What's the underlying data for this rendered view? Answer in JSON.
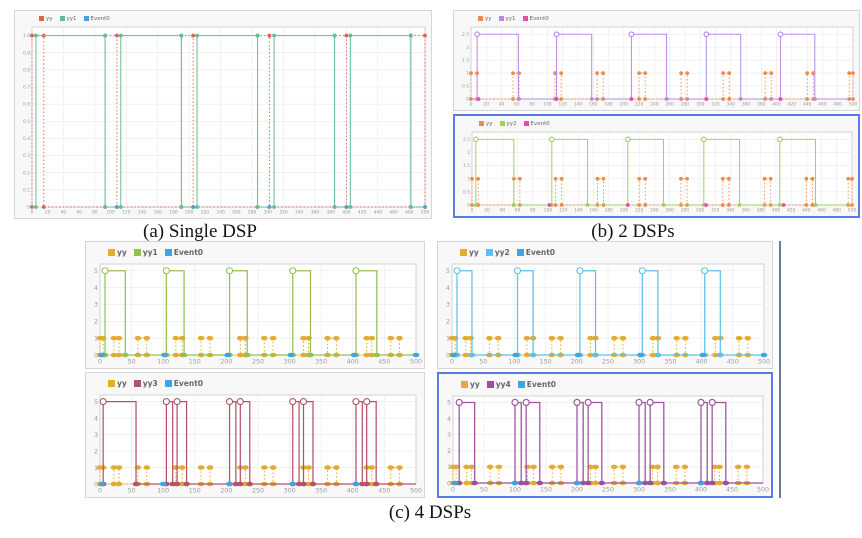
{
  "figure": {
    "captions": {
      "a": "(a) Single DSP",
      "b": "(b) 2 DSPs",
      "c": "(c) 4 DSPs"
    }
  },
  "colors": {
    "selection_border": "#5b79e8",
    "grid": "#e9e9e9",
    "tick_text": "#999999"
  },
  "chart_data": [
    {
      "id": "a",
      "type": "line",
      "title": "(a) Single DSP",
      "legend": [
        {
          "label": "yy",
          "color": "#e4604d"
        },
        {
          "label": "yy1",
          "color": "#62bd92"
        },
        {
          "label": "Event0",
          "color": "#4d9fdb"
        }
      ],
      "xlim": [
        0,
        500
      ],
      "xticks": [
        0,
        20,
        40,
        60,
        80,
        100,
        120,
        140,
        160,
        180,
        200,
        220,
        240,
        260,
        280,
        300,
        320,
        340,
        360,
        380,
        400,
        420,
        440,
        460,
        480,
        500
      ],
      "ylim": [
        0,
        1.05
      ],
      "ytick_vals": [
        0,
        0.1,
        0.2,
        0.3,
        0.4,
        0.5,
        0.6,
        0.7,
        0.8,
        0.9,
        1.0
      ],
      "ytick_labels": [
        "0",
        "0.1",
        "0.2",
        "0.3",
        "0.4",
        "0.5",
        "0.6",
        "0.7",
        "0.8",
        "0.9",
        "1.0"
      ],
      "series": [
        {
          "name": "yy",
          "color": "#e4604d",
          "style": "dashed",
          "low": 0,
          "high": 1,
          "pulses": [
            [
              0,
              15
            ],
            [
              93,
              108
            ],
            [
              190,
              205
            ],
            [
              287,
              302
            ],
            [
              385,
              400
            ],
            [
              482,
              500
            ]
          ]
        },
        {
          "name": "yy1",
          "color": "#62bd92",
          "style": "solid",
          "low": 0,
          "high": 1,
          "open_start": false,
          "pulses": [
            [
              5,
              93
            ],
            [
              113,
              190
            ],
            [
              210,
              287
            ],
            [
              308,
              385
            ],
            [
              405,
              482
            ]
          ]
        }
      ],
      "events": [
        {
          "name": "Event0",
          "color": "#4d9fdb",
          "level": 0,
          "x": [
            108,
            205,
            302,
            400,
            500
          ]
        }
      ]
    },
    {
      "id": "b1",
      "type": "line",
      "title": "(b) 2 DSPs - top",
      "legend": [
        {
          "label": "yy",
          "color": "#ee8b49"
        },
        {
          "label": "yy1",
          "color": "#bd87e0"
        },
        {
          "label": "Event0",
          "color": "#ea4da5"
        }
      ],
      "xlim": [
        0,
        500
      ],
      "xticks": [
        0,
        20,
        40,
        60,
        80,
        100,
        120,
        140,
        160,
        180,
        200,
        220,
        240,
        260,
        280,
        300,
        320,
        340,
        360,
        380,
        400,
        420,
        440,
        460,
        480,
        500
      ],
      "ylim": [
        0,
        2.78
      ],
      "ytick_vals": [
        0,
        0.5,
        1,
        1.5,
        2,
        2.5
      ],
      "ytick_labels": [
        "0",
        "0.5",
        "1",
        "1.5",
        "2",
        "2.5"
      ],
      "series": [
        {
          "name": "yy",
          "color": "#ee8b49",
          "style": "dashed",
          "low": 0,
          "high": 1,
          "pulses": [
            [
              0,
              8
            ],
            [
              55,
              63
            ],
            [
              110,
              118
            ],
            [
              165,
              173
            ],
            [
              220,
              228
            ],
            [
              275,
              283
            ],
            [
              330,
              338
            ],
            [
              385,
              393
            ],
            [
              440,
              448
            ],
            [
              495,
              500
            ]
          ]
        },
        {
          "name": "yy1",
          "color": "#bd87e0",
          "style": "solid",
          "low": 0,
          "high": 2.5,
          "open_start": true,
          "pulses": [
            [
              8,
              62
            ],
            [
              112,
              158
            ],
            [
              210,
              256
            ],
            [
              308,
              353
            ],
            [
              405,
              450
            ]
          ]
        }
      ],
      "events": [
        {
          "name": "Event0",
          "color": "#ea4da5",
          "level": 0,
          "x": [
            10,
            112,
            210,
            308,
            405
          ]
        }
      ]
    },
    {
      "id": "b2",
      "type": "line",
      "title": "(b) 2 DSPs - bottom",
      "selected": true,
      "legend": [
        {
          "label": "yy",
          "color": "#ee8b49"
        },
        {
          "label": "yy2",
          "color": "#a2cf63"
        },
        {
          "label": "Event0",
          "color": "#ea4da5"
        }
      ],
      "xlim": [
        0,
        500
      ],
      "xticks": [
        0,
        20,
        40,
        60,
        80,
        100,
        120,
        140,
        160,
        180,
        200,
        220,
        240,
        260,
        280,
        300,
        320,
        340,
        360,
        380,
        400,
        420,
        440,
        460,
        480,
        500
      ],
      "ylim": [
        0,
        2.78
      ],
      "ytick_vals": [
        0,
        0.5,
        1,
        1.5,
        2,
        2.5
      ],
      "ytick_labels": [
        "0",
        "0.5",
        "1",
        "1.5",
        "2",
        "2.5"
      ],
      "series": [
        {
          "name": "yy",
          "color": "#ee8b49",
          "style": "dashed",
          "low": 0,
          "high": 1,
          "pulses": [
            [
              0,
              8
            ],
            [
              55,
              63
            ],
            [
              110,
              118
            ],
            [
              165,
              173
            ],
            [
              220,
              228
            ],
            [
              275,
              283
            ],
            [
              330,
              338
            ],
            [
              385,
              393
            ],
            [
              440,
              448
            ],
            [
              495,
              500
            ]
          ]
        },
        {
          "name": "yy2",
          "color": "#a2cf63",
          "style": "solid",
          "low": 0,
          "high": 2.5,
          "open_start": true,
          "pulses": [
            [
              5,
              55
            ],
            [
              105,
              152
            ],
            [
              205,
              252
            ],
            [
              305,
              352
            ],
            [
              405,
              452
            ]
          ]
        }
      ],
      "events": [
        {
          "name": "Event0",
          "color": "#ea4da5",
          "level": 0,
          "x": [
            102,
            205,
            308,
            410
          ]
        }
      ]
    },
    {
      "id": "c1",
      "type": "line",
      "title": "(c) 4 DSPs - top left",
      "legend": [
        {
          "label": "yy",
          "color": "#e5ab2e"
        },
        {
          "label": "yy1",
          "color": "#93c153"
        },
        {
          "label": "Event0",
          "color": "#3da4e8"
        }
      ],
      "xlim": [
        0,
        500
      ],
      "xticks": [
        0,
        50,
        100,
        150,
        200,
        250,
        300,
        350,
        400,
        450,
        500
      ],
      "ylim": [
        0,
        5.4
      ],
      "ytick_vals": [
        0,
        1,
        2,
        3,
        4,
        5
      ],
      "ytick_labels": [
        "0",
        "1",
        "2",
        "3",
        "4",
        "5"
      ],
      "series": [
        {
          "name": "yy",
          "color": "#e5ab2e",
          "style": "dashed",
          "low": 0,
          "high": 1,
          "pulses": [
            [
              0,
              5
            ],
            [
              22,
              30
            ],
            [
              60,
              74
            ],
            [
              120,
              130
            ],
            [
              160,
              174
            ],
            [
              222,
              230
            ],
            [
              260,
              274
            ],
            [
              322,
              330
            ],
            [
              360,
              374
            ],
            [
              422,
              430
            ],
            [
              460,
              474
            ]
          ]
        },
        {
          "name": "yy1",
          "color": "#93c153",
          "style": "solid",
          "low": 0,
          "high": 5,
          "open_start": true,
          "pulses": [
            [
              8,
              40
            ],
            [
              105,
              133
            ],
            [
              205,
              233
            ],
            [
              305,
              333
            ],
            [
              405,
              438
            ]
          ]
        }
      ],
      "events": [
        {
          "name": "Event0",
          "color": "#3da4e8",
          "level": 0,
          "x": [
            3,
            102,
            202,
            302,
            402,
            500
          ]
        }
      ]
    },
    {
      "id": "c2",
      "type": "line",
      "title": "(c) 4 DSPs - top right",
      "legend": [
        {
          "label": "yy",
          "color": "#e5ab2e"
        },
        {
          "label": "yy2",
          "color": "#5ec1e8"
        },
        {
          "label": "Event0",
          "color": "#3da4e8"
        }
      ],
      "xlim": [
        0,
        500
      ],
      "xticks": [
        0,
        50,
        100,
        150,
        200,
        250,
        300,
        350,
        400,
        450,
        500
      ],
      "ylim": [
        0,
        5.4
      ],
      "ytick_vals": [
        0,
        1,
        2,
        3,
        4,
        5
      ],
      "ytick_labels": [
        "0",
        "1",
        "2",
        "3",
        "4",
        "5"
      ],
      "series": [
        {
          "name": "yy",
          "color": "#e5ab2e",
          "style": "dashed",
          "low": 0,
          "high": 1,
          "pulses": [
            [
              0,
              5
            ],
            [
              22,
              30
            ],
            [
              60,
              74
            ],
            [
              120,
              130
            ],
            [
              160,
              174
            ],
            [
              222,
              230
            ],
            [
              260,
              274
            ],
            [
              322,
              330
            ],
            [
              360,
              374
            ],
            [
              422,
              430
            ],
            [
              460,
              474
            ]
          ]
        },
        {
          "name": "yy2",
          "color": "#5ec1e8",
          "style": "solid",
          "low": 0,
          "high": 5,
          "open_start": true,
          "pulses": [
            [
              8,
              32
            ],
            [
              105,
              130
            ],
            [
              205,
              230
            ],
            [
              305,
              330
            ],
            [
              405,
              430
            ]
          ]
        }
      ],
      "events": [
        {
          "name": "Event0",
          "color": "#3da4e8",
          "level": 0,
          "x": [
            3,
            102,
            202,
            302,
            402,
            500
          ]
        }
      ]
    },
    {
      "id": "c3",
      "type": "line",
      "title": "(c) 4 DSPs - bottom left",
      "legend": [
        {
          "label": "yy",
          "color": "#e5ab2e"
        },
        {
          "label": "yy3",
          "color": "#b45367"
        },
        {
          "label": "Event0",
          "color": "#3da4e8"
        }
      ],
      "xlim": [
        0,
        500
      ],
      "xticks": [
        0,
        50,
        100,
        150,
        200,
        250,
        300,
        350,
        400,
        450,
        500
      ],
      "ylim": [
        0,
        5.4
      ],
      "ytick_vals": [
        0,
        1,
        2,
        3,
        4,
        5
      ],
      "ytick_labels": [
        "0",
        "1",
        "2",
        "3",
        "4",
        "5"
      ],
      "series": [
        {
          "name": "yy",
          "color": "#e5ab2e",
          "style": "dashed",
          "low": 0,
          "high": 1,
          "pulses": [
            [
              0,
              5
            ],
            [
              22,
              30
            ],
            [
              60,
              74
            ],
            [
              120,
              130
            ],
            [
              160,
              174
            ],
            [
              222,
              230
            ],
            [
              260,
              274
            ],
            [
              322,
              330
            ],
            [
              360,
              374
            ],
            [
              422,
              430
            ],
            [
              460,
              474
            ]
          ]
        },
        {
          "name": "yy3",
          "color": "#b45367",
          "style": "solid",
          "low": 0,
          "high": 5,
          "open_start": true,
          "pulses": [
            [
              5,
              57
            ],
            [
              105,
              115
            ],
            [
              122,
              137
            ],
            [
              205,
              215
            ],
            [
              222,
              237
            ],
            [
              305,
              315
            ],
            [
              322,
              337
            ],
            [
              405,
              415
            ],
            [
              422,
              437
            ]
          ]
        }
      ],
      "events": [
        {
          "name": "Event0",
          "color": "#3da4e8",
          "level": 0,
          "x": [
            3,
            100,
            205,
            305,
            405
          ]
        }
      ]
    },
    {
      "id": "c4",
      "type": "line",
      "title": "(c) 4 DSPs - bottom right",
      "selected": true,
      "legend": [
        {
          "label": "yy",
          "color": "#e5ab2e"
        },
        {
          "label": "yy4",
          "color": "#9b4f9e"
        },
        {
          "label": "Event0",
          "color": "#3da4e8"
        }
      ],
      "xlim": [
        0,
        500
      ],
      "xticks": [
        0,
        50,
        100,
        150,
        200,
        250,
        300,
        350,
        400,
        450,
        500
      ],
      "ylim": [
        0,
        5.4
      ],
      "ytick_vals": [
        0,
        1,
        2,
        3,
        4,
        5
      ],
      "ytick_labels": [
        "0",
        "1",
        "2",
        "3",
        "4",
        "5"
      ],
      "series": [
        {
          "name": "yy",
          "color": "#e5ab2e",
          "style": "dashed",
          "low": 0,
          "high": 1,
          "pulses": [
            [
              0,
              5
            ],
            [
              22,
              30
            ],
            [
              60,
              74
            ],
            [
              120,
              130
            ],
            [
              160,
              174
            ],
            [
              222,
              230
            ],
            [
              260,
              274
            ],
            [
              322,
              330
            ],
            [
              360,
              374
            ],
            [
              422,
              430
            ],
            [
              460,
              474
            ]
          ]
        },
        {
          "name": "yy4",
          "color": "#9b4f9e",
          "style": "solid",
          "low": 0,
          "high": 5,
          "open_start": true,
          "pulses": [
            [
              10,
              35
            ],
            [
              100,
              110
            ],
            [
              118,
              140
            ],
            [
              200,
              210
            ],
            [
              218,
              240
            ],
            [
              300,
              310
            ],
            [
              318,
              340
            ],
            [
              400,
              410
            ],
            [
              418,
              440
            ]
          ]
        }
      ],
      "events": [
        {
          "name": "Event0",
          "color": "#3da4e8",
          "level": 0,
          "x": [
            3,
            100,
            200,
            300,
            400
          ]
        }
      ]
    }
  ]
}
